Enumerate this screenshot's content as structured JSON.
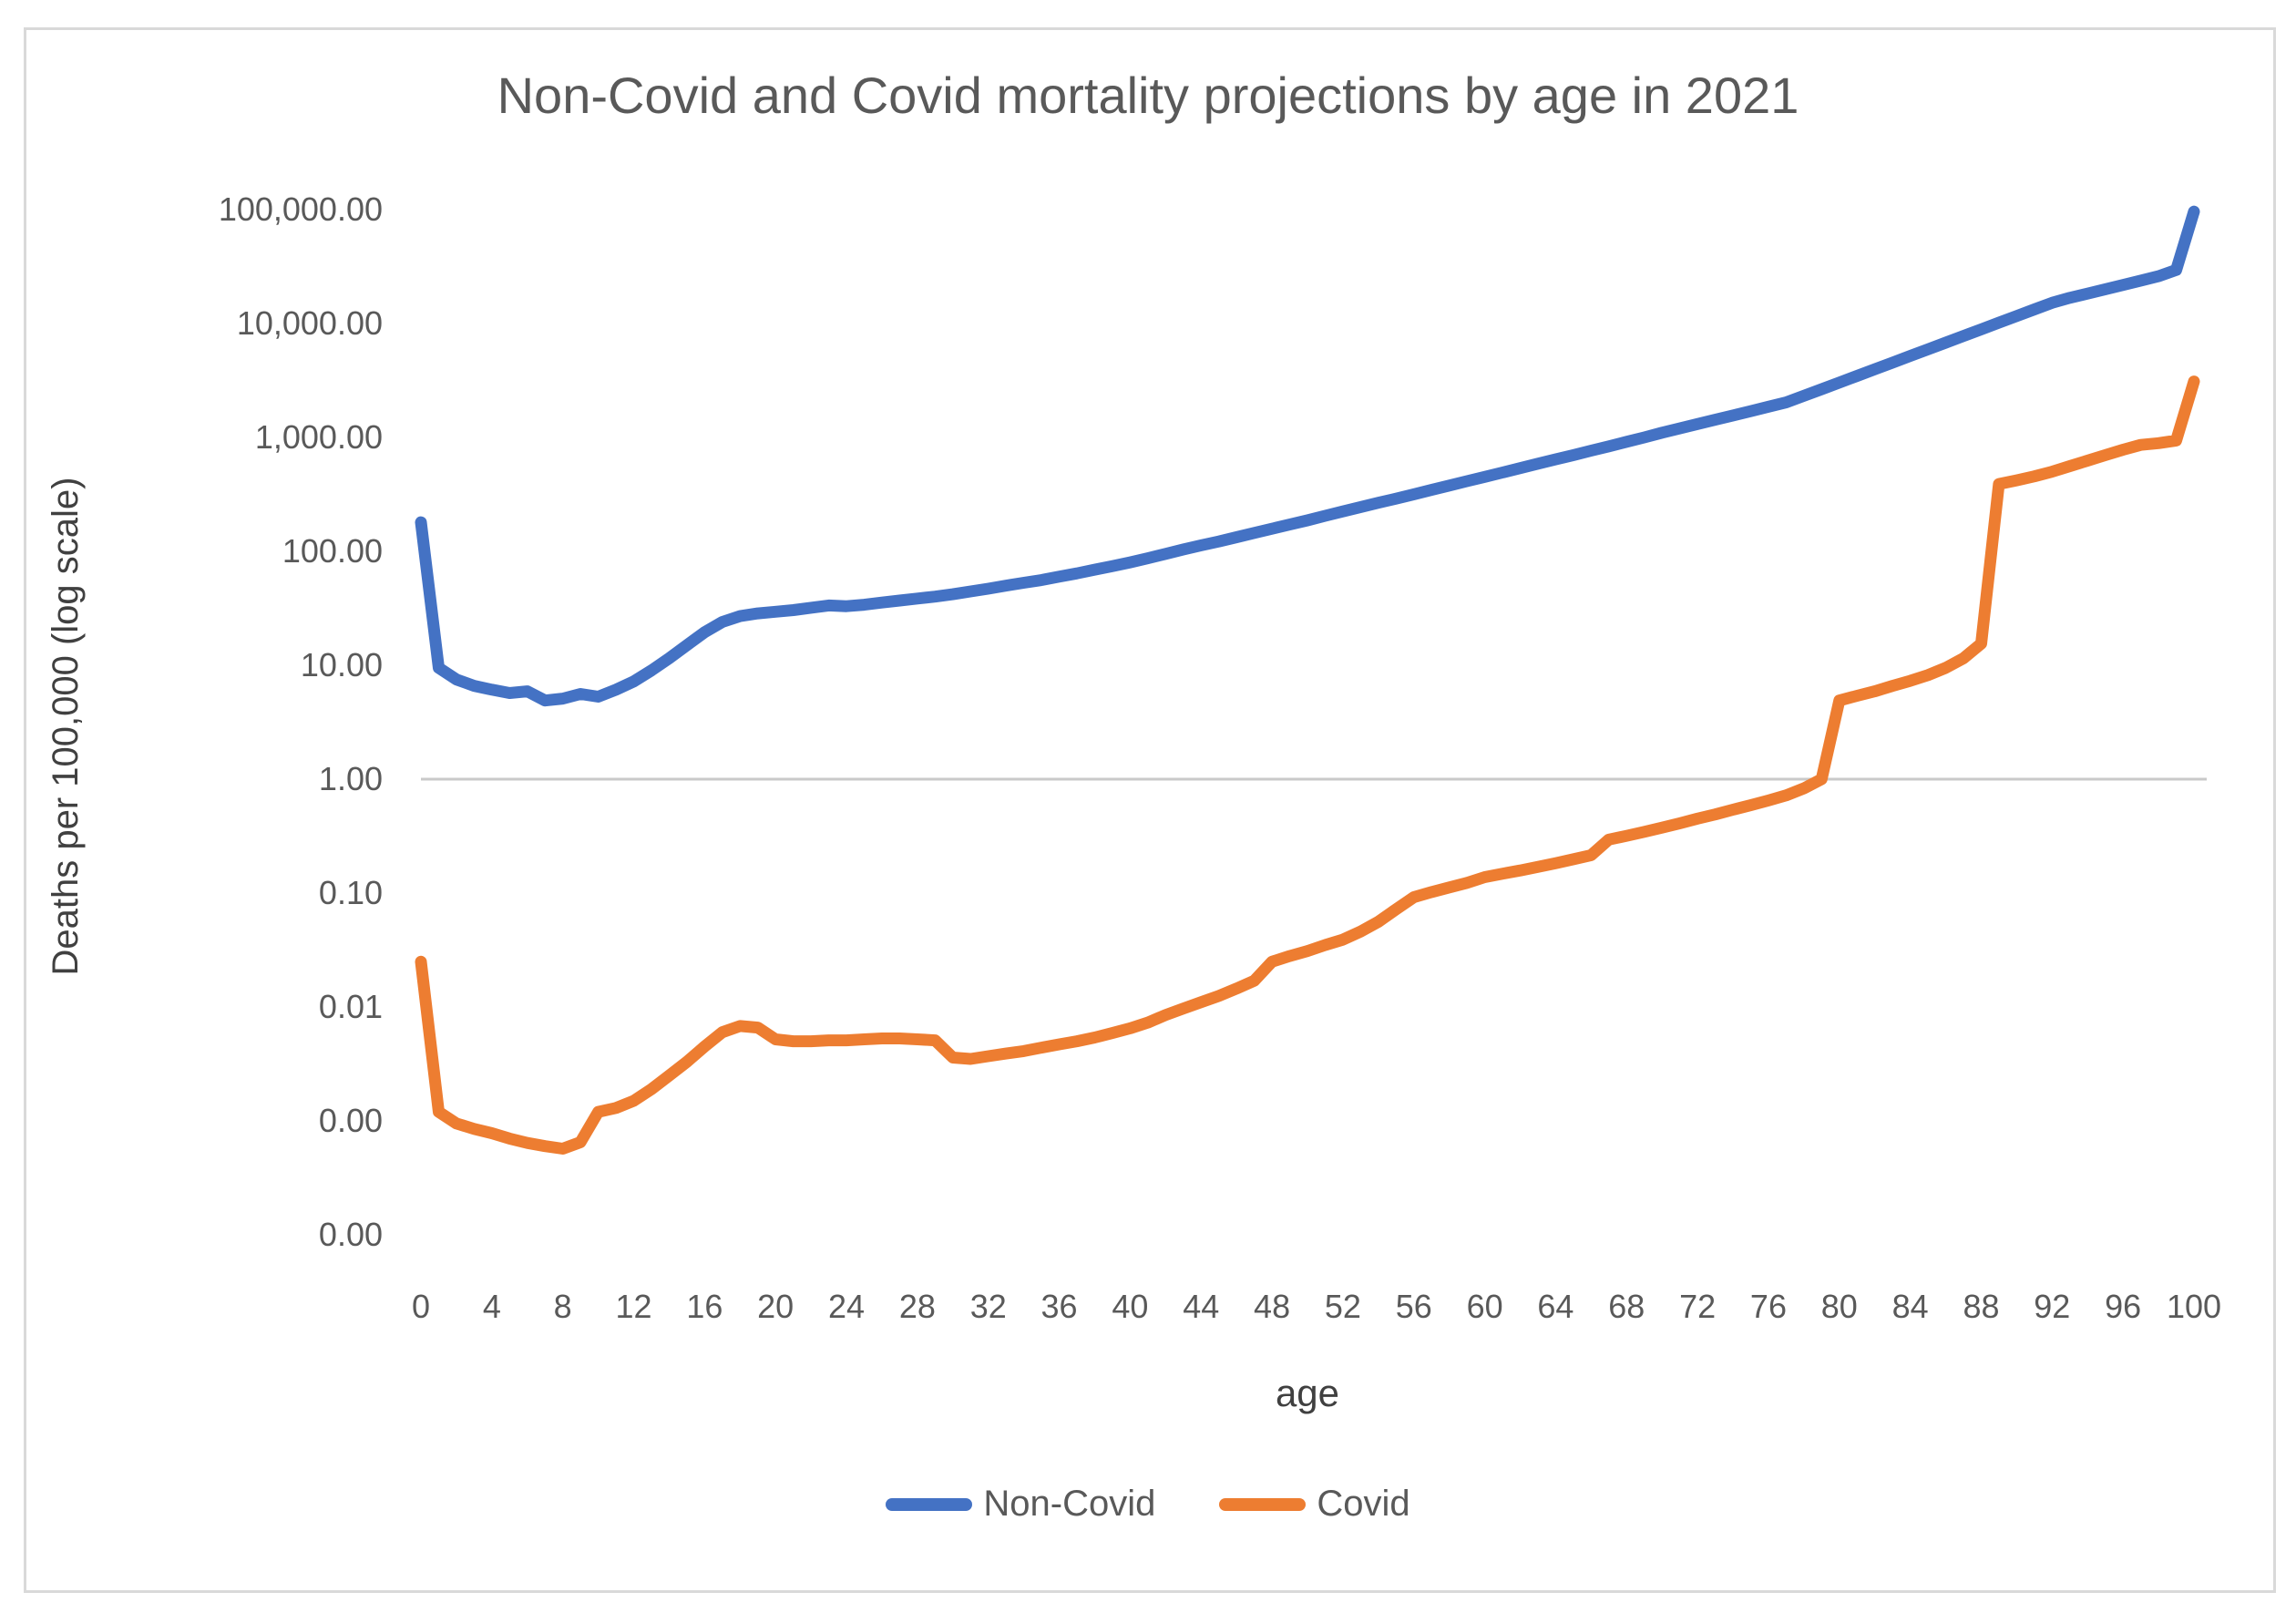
{
  "chart_data": {
    "type": "line",
    "title": "Non-Covid and Covid mortality projections by age in 2021",
    "xlabel": "age",
    "ylabel": "Deaths per 100,000 (log scale)",
    "y_scale": "log10",
    "ylim": [
      0.0001,
      100000
    ],
    "xlim": [
      0,
      100
    ],
    "x_axis_crosses_at_y": 1.0,
    "grid": "single horizontal axis line at y=1.00",
    "legend_position": "bottom-center",
    "y_ticks": [
      {
        "label": "100,000.00",
        "value": 100000
      },
      {
        "label": "10,000.00",
        "value": 10000
      },
      {
        "label": "1,000.00",
        "value": 1000
      },
      {
        "label": "100.00",
        "value": 100
      },
      {
        "label": "10.00",
        "value": 10
      },
      {
        "label": "1.00",
        "value": 1
      },
      {
        "label": "0.10",
        "value": 0.1
      },
      {
        "label": "0.01",
        "value": 0.01
      },
      {
        "label": "0.00",
        "value": 0.001
      },
      {
        "label": "0.00",
        "value": 0.0001
      }
    ],
    "x_ticks": [
      0,
      4,
      8,
      12,
      16,
      20,
      24,
      28,
      32,
      36,
      40,
      44,
      48,
      52,
      56,
      60,
      64,
      68,
      72,
      76,
      80,
      84,
      88,
      92,
      96,
      100
    ],
    "x": [
      0,
      1,
      2,
      3,
      4,
      5,
      6,
      7,
      8,
      9,
      10,
      11,
      12,
      13,
      14,
      15,
      16,
      17,
      18,
      19,
      20,
      21,
      22,
      23,
      24,
      25,
      26,
      27,
      28,
      29,
      30,
      31,
      32,
      33,
      34,
      35,
      36,
      37,
      38,
      39,
      40,
      41,
      42,
      43,
      44,
      45,
      46,
      47,
      48,
      49,
      50,
      51,
      52,
      53,
      54,
      55,
      56,
      57,
      58,
      59,
      60,
      61,
      62,
      63,
      64,
      65,
      66,
      67,
      68,
      69,
      70,
      71,
      72,
      73,
      74,
      75,
      76,
      77,
      78,
      79,
      80,
      81,
      82,
      83,
      84,
      85,
      86,
      87,
      88,
      89,
      90,
      91,
      92,
      93,
      94,
      95,
      96,
      97,
      98,
      99,
      100
    ],
    "series": [
      {
        "name": "Non-Covid",
        "color": "#4472C4",
        "values": [
          180,
          9.5,
          7.5,
          6.6,
          6.1,
          5.7,
          5.9,
          4.9,
          5.1,
          5.6,
          5.3,
          6.1,
          7.2,
          9,
          11.5,
          15,
          19.5,
          24,
          27,
          28.5,
          29.5,
          30.5,
          32,
          33.5,
          33,
          34,
          35.5,
          37,
          38.5,
          40,
          42,
          44.5,
          47,
          50,
          53,
          56,
          60,
          64,
          69,
          74,
          80,
          87,
          95,
          104,
          113,
          122,
          133,
          145,
          158,
          172,
          187,
          205,
          224,
          245,
          267,
          290,
          317,
          346,
          378,
          413,
          450,
          492,
          538,
          588,
          642,
          700,
          765,
          835,
          915,
          1000,
          1100,
          1200,
          1310,
          1430,
          1560,
          1700,
          1860,
          2030,
          2320,
          2650,
          3030,
          3470,
          3970,
          4540,
          5190,
          5940,
          6790,
          7770,
          8890,
          10170,
          11630,
          13300,
          15200,
          16800,
          18300,
          20000,
          21800,
          23800,
          26000,
          29500,
          96000
        ]
      },
      {
        "name": "Covid",
        "color": "#ED7D31",
        "values": [
          0.025,
          0.0012,
          0.00095,
          0.00085,
          0.00078,
          0.0007,
          0.00064,
          0.0006,
          0.00057,
          0.00065,
          0.0012,
          0.0013,
          0.0015,
          0.0019,
          0.0025,
          0.0033,
          0.0045,
          0.006,
          0.0068,
          0.0066,
          0.0052,
          0.005,
          0.005,
          0.0051,
          0.0051,
          0.0052,
          0.0053,
          0.0053,
          0.0052,
          0.0051,
          0.0036,
          0.0035,
          0.0037,
          0.0039,
          0.0041,
          0.0044,
          0.0047,
          0.005,
          0.0054,
          0.0059,
          0.0065,
          0.0073,
          0.0085,
          0.0097,
          0.011,
          0.0125,
          0.0145,
          0.017,
          0.025,
          0.028,
          0.031,
          0.035,
          0.039,
          0.046,
          0.056,
          0.072,
          0.092,
          0.102,
          0.112,
          0.123,
          0.138,
          0.148,
          0.158,
          0.17,
          0.183,
          0.198,
          0.215,
          0.295,
          0.318,
          0.345,
          0.375,
          0.41,
          0.45,
          0.49,
          0.54,
          0.59,
          0.65,
          0.72,
          0.83,
          1.0,
          4.9,
          5.4,
          5.9,
          6.6,
          7.3,
          8.2,
          9.5,
          11.5,
          15.5,
          390,
          420,
          455,
          500,
          560,
          625,
          700,
          780,
          860,
          890,
          940,
          3100
        ]
      }
    ]
  },
  "legend": {
    "items": [
      {
        "label": "Non-Covid"
      },
      {
        "label": "Covid"
      }
    ]
  }
}
